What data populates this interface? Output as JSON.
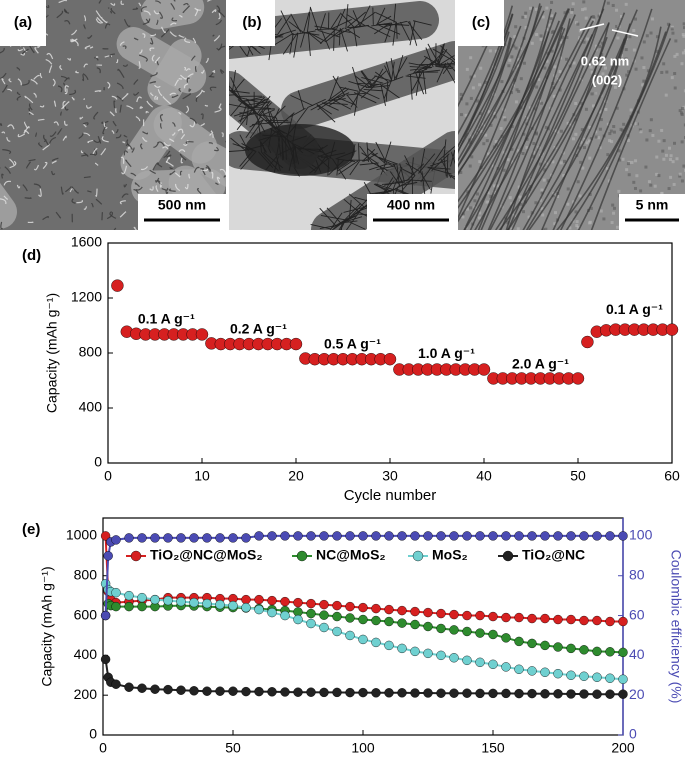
{
  "images": [
    {
      "label": "(a)",
      "scale_bar": "500 nm"
    },
    {
      "label": "(b)",
      "scale_bar": "400 nm"
    },
    {
      "label": "(c)",
      "scale_bar": "5 nm",
      "annotations": [
        "0.62 nm",
        "(002)"
      ]
    }
  ],
  "chart_data": [
    {
      "type": "scatter",
      "panel_label": "(d)",
      "x_label": "Cycle number",
      "y_label": "Capacity (mAh g⁻¹)",
      "x": [
        1,
        2,
        3,
        4,
        5,
        6,
        7,
        8,
        9,
        10,
        11,
        12,
        13,
        14,
        15,
        16,
        17,
        18,
        19,
        20,
        21,
        22,
        23,
        24,
        25,
        26,
        27,
        28,
        29,
        30,
        31,
        32,
        33,
        34,
        35,
        36,
        37,
        38,
        39,
        40,
        41,
        42,
        43,
        44,
        45,
        46,
        47,
        48,
        49,
        50,
        51,
        52,
        53,
        54,
        55,
        56,
        57,
        58,
        59,
        60
      ],
      "values": [
        1290,
        955,
        940,
        935,
        935,
        935,
        935,
        935,
        935,
        935,
        870,
        865,
        865,
        865,
        865,
        865,
        865,
        865,
        865,
        865,
        760,
        755,
        755,
        755,
        755,
        755,
        755,
        755,
        755,
        755,
        680,
        680,
        680,
        680,
        680,
        680,
        680,
        680,
        680,
        680,
        615,
        615,
        615,
        615,
        615,
        615,
        615,
        615,
        615,
        615,
        880,
        955,
        965,
        970,
        970,
        970,
        970,
        970,
        970,
        970
      ],
      "color": "#d62020",
      "annotations": [
        "0.1 A g⁻¹",
        "0.2 A g⁻¹",
        "0.5 A g⁻¹",
        "1.0 A g⁻¹",
        "2.0 A g⁻¹",
        "0.1 A g⁻¹"
      ],
      "xlim": [
        0,
        60
      ],
      "xticks": [
        0,
        10,
        20,
        30,
        40,
        50,
        60
      ],
      "ylim": [
        0,
        1600
      ],
      "yticks": [
        0,
        400,
        800,
        1200,
        1600
      ]
    },
    {
      "type": "scatter",
      "panel_label": "(e)",
      "x_label": "Cycle number",
      "y_label": "Capacity (mAh g⁻¹)",
      "y2_label": "Coulombic efficiency (%)",
      "x": [
        1,
        2,
        3,
        5,
        10,
        15,
        20,
        25,
        30,
        35,
        40,
        45,
        50,
        55,
        60,
        65,
        70,
        75,
        80,
        85,
        90,
        95,
        100,
        105,
        110,
        115,
        120,
        125,
        130,
        135,
        140,
        145,
        150,
        155,
        160,
        165,
        170,
        175,
        180,
        185,
        190,
        195,
        200
      ],
      "series": [
        {
          "name": "TiO₂@NC@MoS₂",
          "color": "#d62020",
          "values": [
            1000,
            720,
            680,
            665,
            670,
            675,
            680,
            690,
            690,
            690,
            690,
            685,
            685,
            680,
            680,
            675,
            670,
            665,
            660,
            655,
            650,
            645,
            640,
            635,
            630,
            625,
            620,
            615,
            610,
            605,
            600,
            600,
            595,
            590,
            590,
            585,
            585,
            580,
            580,
            575,
            575,
            570,
            570
          ]
        },
        {
          "name": "NC@MoS₂",
          "color": "#2e8b2e",
          "values": [
            600,
            660,
            650,
            645,
            645,
            645,
            645,
            648,
            650,
            648,
            645,
            642,
            640,
            638,
            635,
            630,
            625,
            618,
            610,
            602,
            595,
            588,
            580,
            575,
            570,
            562,
            555,
            545,
            535,
            528,
            520,
            512,
            505,
            488,
            470,
            460,
            450,
            442,
            435,
            428,
            420,
            418,
            415
          ]
        },
        {
          "name": "MoS₂",
          "color": "#6fd0d0",
          "values": [
            760,
            730,
            720,
            715,
            700,
            690,
            680,
            675,
            670,
            665,
            660,
            655,
            650,
            640,
            630,
            615,
            600,
            580,
            560,
            540,
            520,
            500,
            480,
            465,
            450,
            435,
            420,
            410,
            400,
            388,
            375,
            365,
            355,
            342,
            330,
            322,
            315,
            308,
            300,
            295,
            290,
            285,
            280
          ]
        },
        {
          "name": "TiO₂@NC",
          "color": "#222222",
          "values": [
            380,
            290,
            265,
            255,
            240,
            235,
            230,
            228,
            225,
            222,
            220,
            220,
            220,
            218,
            218,
            217,
            216,
            215,
            215,
            214,
            214,
            213,
            213,
            212,
            212,
            212,
            211,
            211,
            210,
            210,
            210,
            209,
            209,
            209,
            208,
            208,
            207,
            207,
            206,
            206,
            205,
            205,
            205
          ]
        },
        {
          "color": "#4b4bb3",
          "axis": "y2",
          "values": [
            60,
            90,
            97,
            98,
            99,
            99,
            99,
            99,
            99,
            99,
            99,
            99,
            99,
            99,
            100,
            100,
            100,
            100,
            100,
            100,
            100,
            100,
            100,
            100,
            100,
            100,
            100,
            100,
            100,
            100,
            100,
            100,
            100,
            100,
            100,
            100,
            100,
            100,
            100,
            100,
            100,
            100,
            100
          ]
        }
      ],
      "xlim": [
        0,
        200
      ],
      "xticks": [
        0,
        50,
        100,
        150,
        200
      ],
      "ylim": [
        0,
        1090
      ],
      "yticks": [
        0,
        200,
        400,
        600,
        800,
        1000
      ],
      "y2lim": [
        0,
        109
      ],
      "y2ticks": [
        0,
        20,
        40,
        60,
        80,
        100
      ]
    }
  ]
}
